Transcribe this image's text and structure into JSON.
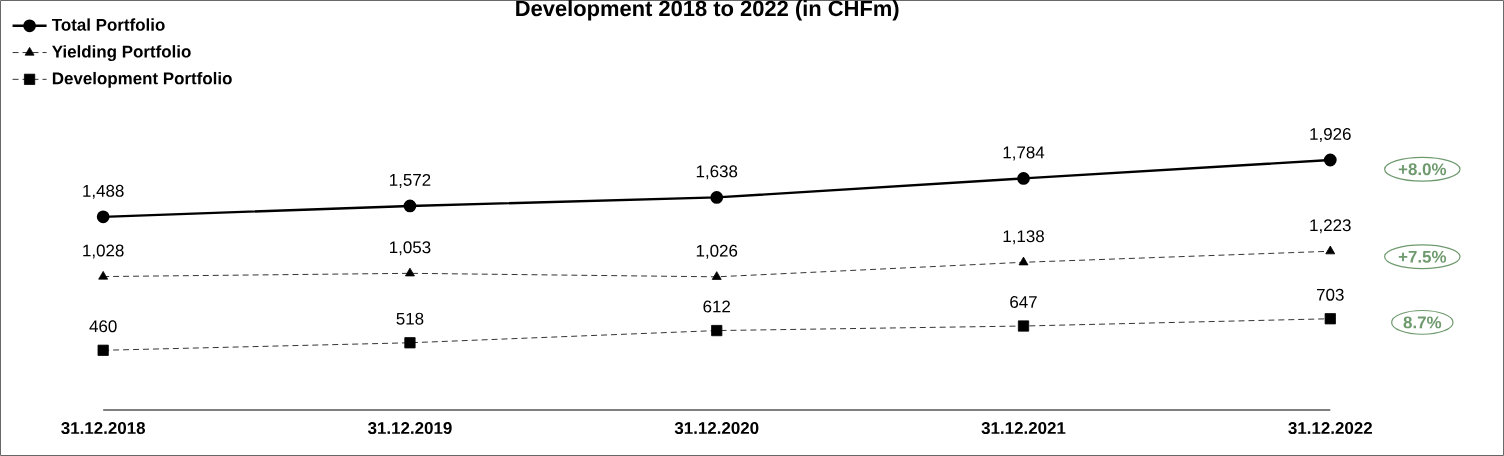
{
  "chart_data": {
    "type": "line",
    "title": "Development 2018 to 2022 (in CHFm)",
    "categories": [
      "31.12.2018",
      "31.12.2019",
      "31.12.2020",
      "31.12.2021",
      "31.12.2022"
    ],
    "series": [
      {
        "name": "Total Portfolio",
        "color": "#000000",
        "marker": "circle",
        "line_style": "solid",
        "values": [
          1488,
          1572,
          1638,
          1784,
          1926
        ],
        "value_labels": [
          "1,488",
          "1,572",
          "1,638",
          "1,784",
          "1,926"
        ]
      },
      {
        "name": "Yielding Portfolio",
        "color": "#000000",
        "marker": "triangle",
        "line_style": "dashed",
        "values": [
          1028,
          1053,
          1026,
          1138,
          1223
        ],
        "value_labels": [
          "1,028",
          "1,053",
          "1,026",
          "1,138",
          "1,223"
        ]
      },
      {
        "name": "Development Portfolio",
        "color": "#000000",
        "marker": "square",
        "line_style": "dashed",
        "values": [
          460,
          518,
          612,
          647,
          703
        ],
        "value_labels": [
          "460",
          "518",
          "612",
          "647",
          "703"
        ]
      }
    ],
    "legend": "top left",
    "annotations": [
      "+8.0%",
      "+7.5%",
      "8.7%"
    ]
  }
}
